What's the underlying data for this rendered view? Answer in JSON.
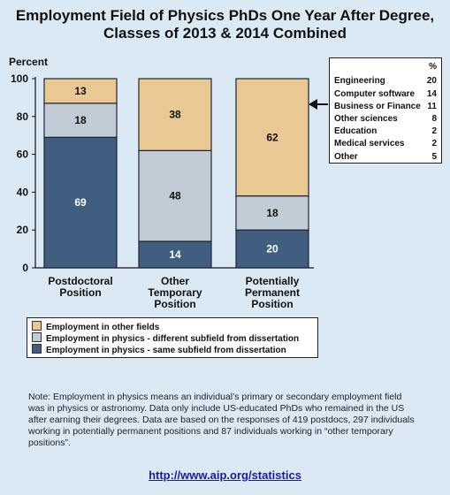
{
  "chart_data": {
    "type": "bar",
    "stacked": true,
    "title": "Employment Field of Physics PhDs One Year After Degree,",
    "subtitle": "Classes of 2013 & 2014 Combined",
    "ylabel": "Percent",
    "ylim": [
      0,
      100
    ],
    "yticks": [
      "0",
      "20",
      "40",
      "60",
      "80",
      "100"
    ],
    "categories": [
      [
        "Postdoctoral",
        "Position"
      ],
      [
        "Other",
        "Temporary",
        "Position"
      ],
      [
        "Potentially",
        "Permanent",
        "Position"
      ]
    ],
    "series": [
      {
        "name": "Employment in physics - same subfield from dissertation",
        "color": "#3f5e80",
        "text_color": "#ffffff",
        "values": [
          69,
          14,
          20
        ]
      },
      {
        "name": "Employment in physics - different subfield from dissertation",
        "color": "#c2ccd7",
        "text_color": "#111111",
        "values": [
          18,
          48,
          18
        ]
      },
      {
        "name": "Employment in other fields",
        "color": "#eac894",
        "text_color": "#111111",
        "values": [
          13,
          38,
          62
        ]
      }
    ]
  },
  "breakdown": {
    "header": "%",
    "items": [
      {
        "label": "Engineering",
        "value": "20"
      },
      {
        "label": "Computer software",
        "value": "14"
      },
      {
        "label": "Business or Finance",
        "value": "11"
      },
      {
        "label": "Other sciences",
        "value": "8"
      },
      {
        "label": "Education",
        "value": "2"
      },
      {
        "label": "Medical services",
        "value": "2"
      },
      {
        "label": "Other",
        "value": "5"
      }
    ]
  },
  "legend": [
    {
      "label": "Employment in other fields",
      "color": "#eac894"
    },
    {
      "label": "Employment in physics - different subfield from dissertation",
      "color": "#c2ccd7"
    },
    {
      "label": "Employment in physics - same subfield from dissertation",
      "color": "#3f5e80"
    }
  ],
  "note": "Note: Employment in physics means an individual’s primary or secondary employment field was in physics or astronomy. Data only include US-educated PhDs who remained in the US after earning their degrees. Data are based on the responses of 419 postdocs, 297 individuals working in potentially permanent positions and 87 individuals working in “other temporary positions”.",
  "link": "http://www.aip.org/statistics"
}
